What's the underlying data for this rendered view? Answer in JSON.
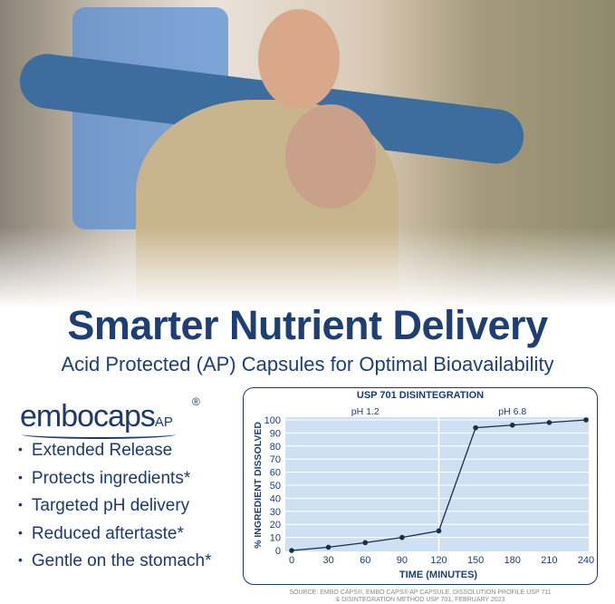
{
  "headline": "Smarter Nutrient Delivery",
  "subheadline": "Acid Protected (AP) Capsules for Optimal Bioavailability",
  "logo": {
    "text": "embocaps",
    "suffix": "AP",
    "mark": "®"
  },
  "features": [
    "Extended Release",
    "Protects ingredients*",
    "Targeted pH delivery",
    "Reduced aftertaste*",
    "Gentle on the stomach*"
  ],
  "colors": {
    "navy": "#1d3f74",
    "plot_bg": "#cfe0f3"
  },
  "source": [
    "SOURCE: EMBO CAPS®, EMBO CAPS® AP CAPSULE, DISSOLUTION PROFILE USP 711",
    "& DISINTEGRATION METHOD USP 701, FEBRUARY 2023"
  ],
  "chart_data": {
    "type": "line",
    "title": "USP 701 DISINTEGRATION",
    "xlabel": "TIME (MINUTES)",
    "ylabel": "% INGREDIENT DISSOLVED",
    "x": [
      0,
      30,
      60,
      90,
      120,
      150,
      180,
      210,
      240
    ],
    "values": [
      0,
      2.5,
      6,
      10,
      15,
      94,
      96,
      98,
      100
    ],
    "xlim": [
      0,
      240
    ],
    "ylim": [
      0,
      100
    ],
    "xticks": [
      "0",
      "30",
      "60",
      "90",
      "120",
      "150",
      "180",
      "210",
      "240"
    ],
    "yticks": [
      "0",
      "10",
      "20",
      "30",
      "40",
      "50",
      "60",
      "70",
      "80",
      "90",
      "100"
    ],
    "regions": [
      {
        "label": "pH 1.2",
        "from": 0,
        "to": 120
      },
      {
        "label": "pH 6.8",
        "from": 120,
        "to": 240
      }
    ],
    "grid": true
  }
}
